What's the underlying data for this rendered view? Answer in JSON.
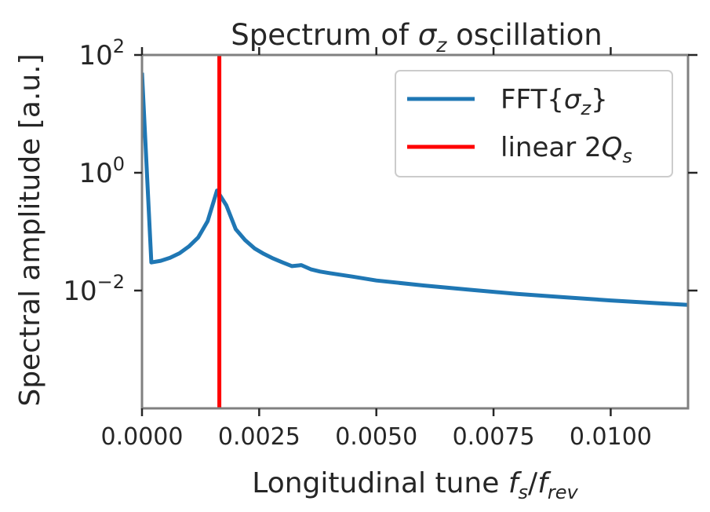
{
  "chart_data": {
    "type": "line",
    "title": "Spectrum of σ_z oscillation",
    "title_parts": {
      "pre": "Spectrum of ",
      "sym": "σ",
      "sub": "z",
      "post": " oscillation"
    },
    "xlabel": "Longitudinal tune f_s/f_rev",
    "xlabel_parts": {
      "pre": "Longitudinal tune ",
      "f1": "f",
      "s1": "s",
      "slash": "/",
      "f2": "f",
      "s2": "rev"
    },
    "ylabel": "Spectral amplitude [a.u.]",
    "x_scale": "linear",
    "y_scale": "log",
    "xlim": [
      0.0,
      0.01165
    ],
    "ylim": [
      0.0001,
      100
    ],
    "x_ticks": [
      0.0,
      0.0025,
      0.005,
      0.0075,
      0.01
    ],
    "x_tick_labels": [
      "0.0000",
      "0.0025",
      "0.0050",
      "0.0075",
      "0.0100"
    ],
    "y_ticks": [
      {
        "value": 0.01,
        "base": "10",
        "exp": "−2"
      },
      {
        "value": 1,
        "base": "10",
        "exp": "0"
      },
      {
        "value": 100,
        "base": "10",
        "exp": "2"
      }
    ],
    "grid": false,
    "legend_position": "upper right",
    "legend": [
      {
        "label": "FFT{σ_z}",
        "pre": "FFT{",
        "sym": "σ",
        "sub": "z",
        "post": "}",
        "color": "#1f77b4"
      },
      {
        "label": "linear 2Q_s",
        "pre": "linear 2",
        "sym": "Q",
        "sub": "s",
        "post": "",
        "color": "#ff0000"
      }
    ],
    "series": [
      {
        "name": "FFT{σ_z}",
        "color": "#1f77b4",
        "x": [
          0.0,
          0.0002,
          0.0004,
          0.0006,
          0.0008,
          0.001,
          0.0012,
          0.0014,
          0.0016,
          0.0018,
          0.002,
          0.0022,
          0.0024,
          0.0026,
          0.0028,
          0.003,
          0.0032,
          0.0034,
          0.0036,
          0.0038,
          0.004,
          0.0045,
          0.005,
          0.006,
          0.007,
          0.008,
          0.009,
          0.01,
          0.011,
          0.01165
        ],
        "y": [
          50,
          0.03,
          0.032,
          0.036,
          0.043,
          0.056,
          0.08,
          0.15,
          0.5,
          0.28,
          0.11,
          0.072,
          0.052,
          0.042,
          0.035,
          0.03,
          0.026,
          0.027,
          0.023,
          0.021,
          0.0198,
          0.0172,
          0.0148,
          0.0122,
          0.0103,
          0.0088,
          0.0077,
          0.0068,
          0.0061,
          0.0057
        ]
      }
    ],
    "vlines": [
      {
        "name": "linear 2Q_s",
        "x": 0.00165,
        "color": "#ff0000"
      }
    ],
    "colors": {
      "axes_edge": "#808080",
      "text": "#262626"
    }
  }
}
